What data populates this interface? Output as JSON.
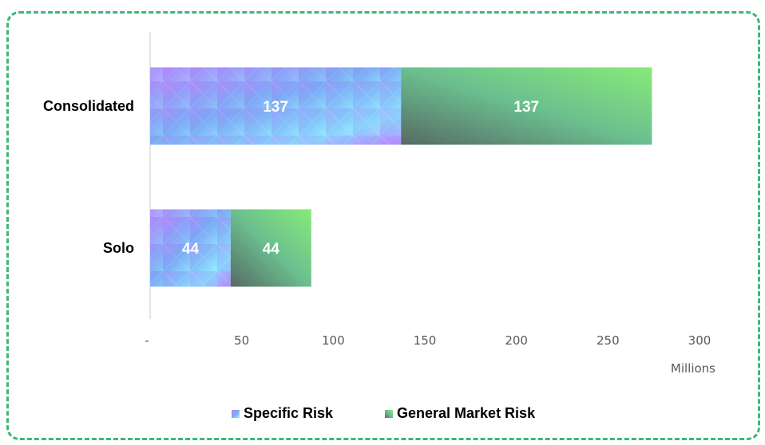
{
  "chart_data": {
    "type": "bar",
    "orientation": "horizontal",
    "stacked": true,
    "categories": [
      "Consolidated",
      "Solo"
    ],
    "series": [
      {
        "name": "Specific Risk",
        "values": [
          137,
          44
        ]
      },
      {
        "name": "General Market Risk",
        "values": [
          137,
          44
        ]
      }
    ],
    "x_ticks": [
      0,
      50,
      100,
      150,
      200,
      250,
      300
    ],
    "x_tick_labels": [
      "-",
      "50",
      "100",
      "150",
      "200",
      "250",
      "300"
    ],
    "x_unit_label": "Millions",
    "xlim": [
      0,
      300
    ],
    "grid": false,
    "legend_position": "bottom",
    "colors": {
      "specific_risk": [
        "#c77dff",
        "#7aa8f5",
        "#8ee6ff"
      ],
      "general_market_risk": [
        "#5a6f67",
        "#6bbf8f",
        "#7fe87a"
      ],
      "frame_border": "#3fb57a",
      "axis": "#c8c8c8"
    }
  }
}
